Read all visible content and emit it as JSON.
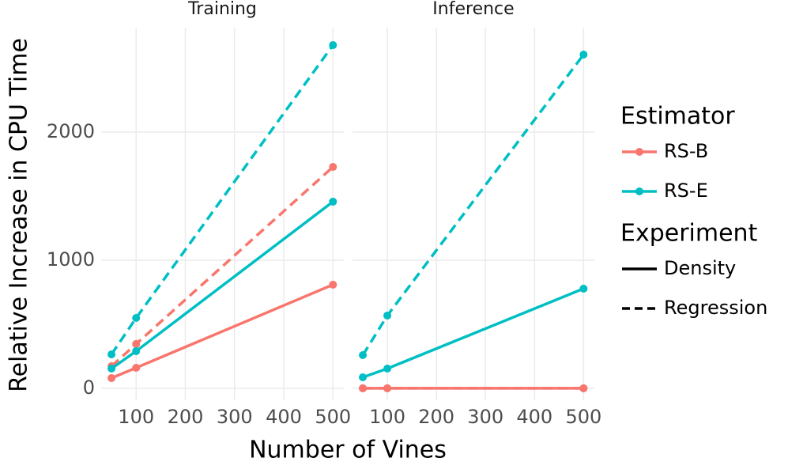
{
  "axes": {
    "xlabel": "Number of Vines",
    "ylabel": "Relative Increase in CPU Time"
  },
  "legend": {
    "estimator": {
      "title": "Estimator",
      "items": [
        {
          "name": "RS-B",
          "color": "#F8766D"
        },
        {
          "name": "RS-E",
          "color": "#00BFC4"
        }
      ]
    },
    "experiment": {
      "title": "Experiment",
      "items": [
        {
          "name": "Density",
          "linetype": "solid"
        },
        {
          "name": "Regression",
          "linetype": "dashed"
        }
      ]
    }
  },
  "chart_data": [
    {
      "type": "line",
      "title": "Training",
      "x": [
        50,
        100,
        500
      ],
      "xlim": [
        29,
        522
      ],
      "xticks": [
        100,
        200,
        300,
        400,
        500
      ],
      "ylim": [
        -93,
        2815
      ],
      "yticks": [
        0,
        1000,
        2000
      ],
      "grid": true,
      "series": [
        {
          "estimator": "RS-B",
          "experiment": "Density",
          "color": "#F8766D",
          "values": [
            80,
            160,
            809
          ]
        },
        {
          "estimator": "RS-B",
          "experiment": "Regression",
          "color": "#F8766D",
          "values": [
            173,
            346,
            1728
          ]
        },
        {
          "estimator": "RS-E",
          "experiment": "Density",
          "color": "#00BFC4",
          "values": [
            154,
            290,
            1457
          ]
        },
        {
          "estimator": "RS-E",
          "experiment": "Regression",
          "color": "#00BFC4",
          "values": [
            265,
            549,
            2679
          ]
        }
      ]
    },
    {
      "type": "line",
      "title": "Inference",
      "x": [
        50,
        100,
        500
      ],
      "xlim": [
        29,
        522
      ],
      "xticks": [
        100,
        200,
        300,
        400,
        500
      ],
      "ylim": [
        -93,
        2815
      ],
      "yticks": [
        0,
        1000,
        2000
      ],
      "grid": true,
      "series": [
        {
          "estimator": "RS-B",
          "experiment": "Density",
          "color": "#F8766D",
          "values": [
            0,
            0,
            0
          ]
        },
        {
          "estimator": "RS-B",
          "experiment": "Regression",
          "color": "#F8766D",
          "values": [
            0,
            0,
            0
          ]
        },
        {
          "estimator": "RS-E",
          "experiment": "Density",
          "color": "#00BFC4",
          "values": [
            86,
            154,
            778
          ]
        },
        {
          "estimator": "RS-E",
          "experiment": "Regression",
          "color": "#00BFC4",
          "values": [
            259,
            568,
            2605
          ]
        }
      ]
    }
  ]
}
